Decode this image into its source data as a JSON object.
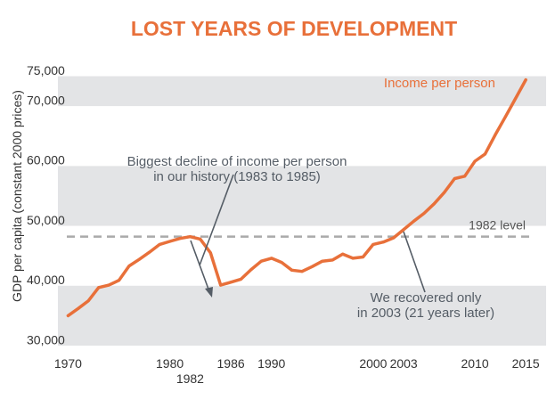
{
  "chart_data": {
    "type": "line",
    "title": "LOST YEARS OF DEVELOPMENT",
    "ylabel": "GDP per capita (constant 2000 prices)",
    "xlabel": "",
    "xlim": [
      1969,
      2017
    ],
    "ylim": [
      29000,
      77500
    ],
    "x_ticks": [
      1970,
      1980,
      1982,
      1986,
      1990,
      2000,
      2003,
      2010,
      2015
    ],
    "y_ticks": [
      30000,
      40000,
      50000,
      60000,
      70000,
      75000
    ],
    "y_tick_labels": [
      "30,000",
      "40,000",
      "50,000",
      "60,000",
      "70,000",
      "75,000"
    ],
    "bands": [
      [
        29000,
        39000
      ],
      [
        49000,
        59000
      ],
      [
        69000,
        74000
      ]
    ],
    "series": [
      {
        "name": "Income per person",
        "color": "#e8703a",
        "x": [
          1970,
          1971,
          1972,
          1973,
          1974,
          1975,
          1976,
          1977,
          1978,
          1979,
          1980,
          1981,
          1982,
          1983,
          1984,
          1985,
          1986,
          1987,
          1988,
          1989,
          1990,
          1991,
          1992,
          1993,
          1994,
          1995,
          1996,
          1997,
          1998,
          1999,
          2000,
          2001,
          2002,
          2003,
          2004,
          2005,
          2006,
          2007,
          2008,
          2009,
          2010,
          2011,
          2012,
          2013,
          2014,
          2015
        ],
        "y": [
          34000,
          35200,
          36500,
          38700,
          39100,
          39900,
          42300,
          43400,
          44600,
          45900,
          46400,
          46900,
          47200,
          46800,
          44500,
          39100,
          39600,
          40100,
          41700,
          43100,
          43600,
          42900,
          41600,
          41400,
          42200,
          43100,
          43300,
          44300,
          43600,
          43800,
          45900,
          46300,
          47000,
          48400,
          49800,
          51100,
          52700,
          54600,
          56900,
          57300,
          59800,
          61000,
          64200,
          67200,
          70300,
          73400
        ]
      }
    ],
    "reference_line": {
      "label": "1982 level",
      "value": 47200,
      "color": "#aaaaaa"
    },
    "annotations": [
      {
        "id": "decline",
        "lines": [
          "Biggest decline of income per person",
          "in our history (1983 to 1985)"
        ],
        "color": "#555d66"
      },
      {
        "id": "recovery",
        "lines": [
          "We recovered only",
          "in 2003 (21 years later)"
        ],
        "color": "#555d66"
      }
    ],
    "grid": false,
    "legend": "top-right",
    "colors": {
      "band": "#e3e4e6",
      "title": "#e8703a",
      "text": "#333333"
    }
  }
}
